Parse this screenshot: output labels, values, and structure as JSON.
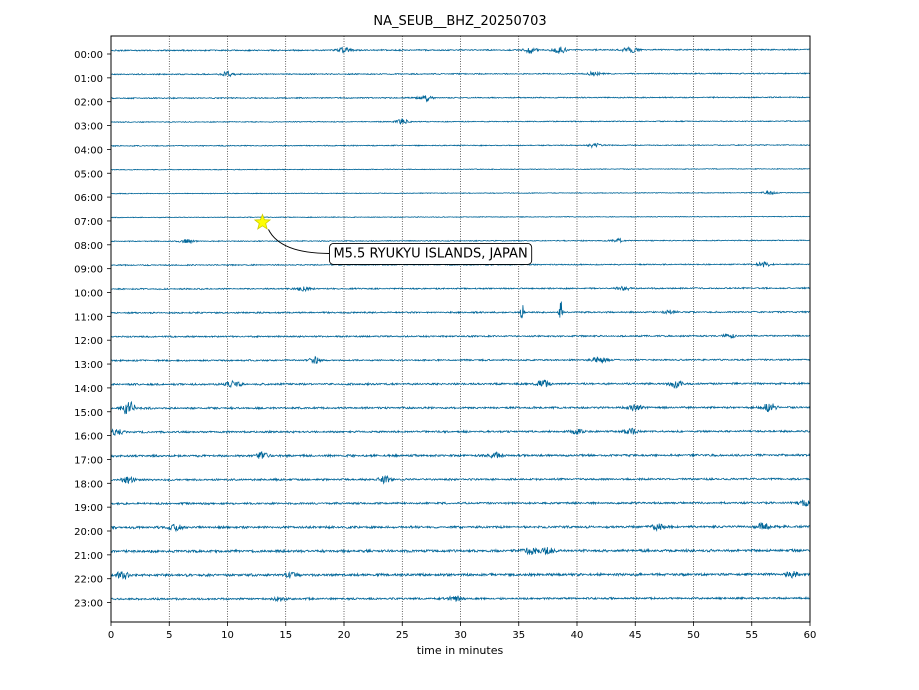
{
  "chart_data": {
    "type": "line",
    "title": "NA_SEUB__BHZ_20250703",
    "xlabel": "time in minutes",
    "ylabel": "",
    "xlim": [
      0,
      60
    ],
    "xticks": [
      0,
      5,
      10,
      15,
      20,
      25,
      30,
      35,
      40,
      45,
      50,
      55,
      60
    ],
    "grid": "vertical dotted at x ticks",
    "line_color": "#006699",
    "rows": [
      "00:00",
      "01:00",
      "02:00",
      "03:00",
      "04:00",
      "05:00",
      "06:00",
      "07:00",
      "08:00",
      "09:00",
      "10:00",
      "11:00",
      "12:00",
      "13:00",
      "14:00",
      "15:00",
      "16:00",
      "17:00",
      "18:00",
      "19:00",
      "20:00",
      "21:00",
      "22:00",
      "23:00"
    ],
    "row_noise": [
      0.7,
      0.6,
      0.6,
      0.5,
      0.5,
      0.4,
      0.4,
      0.4,
      0.5,
      0.6,
      0.7,
      0.8,
      0.8,
      0.8,
      1.0,
      1.0,
      1.0,
      1.1,
      1.0,
      1.0,
      1.2,
      1.3,
      1.3,
      1.0
    ],
    "bursts": [
      {
        "row": 0,
        "x": 20,
        "amp": 2.5
      },
      {
        "row": 0,
        "x": 36,
        "amp": 3
      },
      {
        "row": 0,
        "x": 38.5,
        "amp": 3.5
      },
      {
        "row": 0,
        "x": 44.5,
        "amp": 3
      },
      {
        "row": 1,
        "x": 10,
        "amp": 2.5
      },
      {
        "row": 1,
        "x": 41.5,
        "amp": 2
      },
      {
        "row": 2,
        "x": 27,
        "amp": 3
      },
      {
        "row": 3,
        "x": 25,
        "amp": 2.5
      },
      {
        "row": 4,
        "x": 41.5,
        "amp": 2
      },
      {
        "row": 6,
        "x": 56.5,
        "amp": 2
      },
      {
        "row": 8,
        "x": 6.5,
        "amp": 2
      },
      {
        "row": 8,
        "x": 43.5,
        "amp": 2
      },
      {
        "row": 9,
        "x": 56,
        "amp": 2.5
      },
      {
        "row": 10,
        "x": 16.5,
        "amp": 2
      },
      {
        "row": 10,
        "x": 44,
        "amp": 2
      },
      {
        "row": 11,
        "x": 35.3,
        "amp": 13
      },
      {
        "row": 11,
        "x": 38.6,
        "amp": 16
      },
      {
        "row": 11,
        "x": 48,
        "amp": 2
      },
      {
        "row": 12,
        "x": 53,
        "amp": 2
      },
      {
        "row": 13,
        "x": 17.5,
        "amp": 3
      },
      {
        "row": 13,
        "x": 42,
        "amp": 3.5
      },
      {
        "row": 14,
        "x": 10.5,
        "amp": 3
      },
      {
        "row": 14,
        "x": 37,
        "amp": 4
      },
      {
        "row": 14,
        "x": 48.5,
        "amp": 4
      },
      {
        "row": 15,
        "x": 1.5,
        "amp": 8
      },
      {
        "row": 15,
        "x": 45,
        "amp": 3
      },
      {
        "row": 15,
        "x": 56.5,
        "amp": 4
      },
      {
        "row": 16,
        "x": 0.5,
        "amp": 3
      },
      {
        "row": 16,
        "x": 40,
        "amp": 2.5
      },
      {
        "row": 16,
        "x": 44.5,
        "amp": 3
      },
      {
        "row": 17,
        "x": 13,
        "amp": 3
      },
      {
        "row": 17,
        "x": 33,
        "amp": 3
      },
      {
        "row": 18,
        "x": 1.5,
        "amp": 3
      },
      {
        "row": 18,
        "x": 23.5,
        "amp": 3
      },
      {
        "row": 19,
        "x": 59.5,
        "amp": 3
      },
      {
        "row": 20,
        "x": 5.5,
        "amp": 3
      },
      {
        "row": 20,
        "x": 47,
        "amp": 3
      },
      {
        "row": 20,
        "x": 56,
        "amp": 3
      },
      {
        "row": 21,
        "x": 36,
        "amp": 3.5
      },
      {
        "row": 21,
        "x": 37.5,
        "amp": 3
      },
      {
        "row": 22,
        "x": 1,
        "amp": 4
      },
      {
        "row": 22,
        "x": 15.5,
        "amp": 3
      },
      {
        "row": 22,
        "x": 58.5,
        "amp": 2.5
      },
      {
        "row": 23,
        "x": 14.5,
        "amp": 2
      },
      {
        "row": 23,
        "x": 29.5,
        "amp": 2.5
      }
    ],
    "event": {
      "x": 13,
      "row_time": "07:00",
      "label": "M5.5 RYUKYU ISLANDS, JAPAN",
      "marker_color": "#ffff00"
    }
  }
}
